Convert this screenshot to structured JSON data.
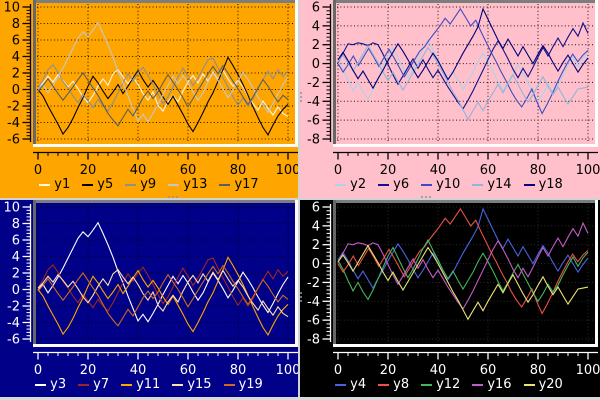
{
  "window": {
    "splitter_color": "#d2d2d2",
    "edge_color": "#d9d9d9"
  },
  "chart_data": {
    "type": "line",
    "charts": [
      {
        "id": "tl",
        "position": "top-left",
        "type": "line",
        "bg": "#ffa500",
        "fg": "#000000",
        "grid_color": "#000000",
        "grid_opacity": 0.9,
        "grid": true,
        "legend_position": "bottom",
        "xlim": [
          0,
          100
        ],
        "x_ticks": [
          0,
          20,
          40,
          60,
          80,
          100
        ],
        "x_minor_divisions": 5,
        "ylim": [
          -6,
          10
        ],
        "y_ticks": [
          10,
          8,
          6,
          4,
          2,
          0,
          -2,
          -4,
          -6
        ],
        "y_minor_divisions": 5,
        "series": [
          {
            "name": "y1",
            "color": "#fdf5e0",
            "values_ref": "A"
          },
          {
            "name": "y5",
            "color": "#000000",
            "values_ref": "B"
          },
          {
            "name": "y9",
            "color": "#8f8f8f",
            "values_ref": "C"
          },
          {
            "name": "y13",
            "color": "#c6c6c6",
            "values_ref": "D"
          },
          {
            "name": "y17",
            "color": "#5d5d5d",
            "values_ref": "E"
          }
        ]
      },
      {
        "id": "tr",
        "position": "top-right",
        "type": "line",
        "bg": "#ffc0cb",
        "fg": "#000000",
        "grid_color": "#000000",
        "grid_opacity": 0.9,
        "grid": true,
        "legend_position": "bottom",
        "xlim": [
          0,
          100
        ],
        "x_ticks": [
          0,
          20,
          40,
          60,
          80,
          100
        ],
        "x_minor_divisions": 5,
        "ylim": [
          -8,
          6
        ],
        "y_ticks": [
          6,
          4,
          2,
          0,
          -2,
          -4,
          -6,
          -8
        ],
        "y_minor_divisions": 5,
        "series": [
          {
            "name": "y2",
            "color": "#aed2e8",
            "values_ref": "F"
          },
          {
            "name": "y6",
            "color": "#10108c",
            "values_ref": "G"
          },
          {
            "name": "y10",
            "color": "#3e4cc0",
            "values_ref": "H"
          },
          {
            "name": "y14",
            "color": "#93b4da",
            "values_ref": "I"
          },
          {
            "name": "y18",
            "color": "#00007a",
            "values_ref": "J"
          }
        ]
      },
      {
        "id": "bl",
        "position": "bottom-left",
        "type": "line",
        "bg": "#000089",
        "fg": "#ffffff",
        "grid_color": "#000000",
        "grid_opacity": 0.8,
        "grid": true,
        "legend_position": "bottom",
        "xlim": [
          0,
          100
        ],
        "x_ticks": [
          0,
          20,
          40,
          60,
          80,
          100
        ],
        "x_minor_divisions": 5,
        "ylim": [
          -6,
          10
        ],
        "y_ticks": [
          10,
          8,
          6,
          4,
          2,
          0,
          -2,
          -4,
          -6
        ],
        "y_minor_divisions": 5,
        "series": [
          {
            "name": "y3",
            "color": "#ffffff",
            "values_ref": "D"
          },
          {
            "name": "y7",
            "color": "#a02424",
            "values_ref": "C"
          },
          {
            "name": "y11",
            "color": "#ffa500",
            "values_ref": "B"
          },
          {
            "name": "y15",
            "color": "#ffdead",
            "values_ref": "A"
          },
          {
            "name": "y19",
            "color": "#cd6a1e",
            "values_ref": "E"
          }
        ]
      },
      {
        "id": "br",
        "position": "bottom-right",
        "type": "line",
        "bg": "#000000",
        "fg": "#ffffff",
        "grid_color": "#2c2c2c",
        "grid_opacity": 1,
        "grid": true,
        "legend_position": "bottom",
        "xlim": [
          0,
          100
        ],
        "x_ticks": [
          0,
          20,
          40,
          60,
          80,
          100
        ],
        "x_minor_divisions": 5,
        "ylim": [
          -8,
          6
        ],
        "y_ticks": [
          6,
          4,
          2,
          0,
          -2,
          -4,
          -6,
          -8
        ],
        "y_minor_divisions": 5,
        "series": [
          {
            "name": "y4",
            "color": "#4664e0",
            "values_ref": "J"
          },
          {
            "name": "y8",
            "color": "#ec5148",
            "values_ref": "H"
          },
          {
            "name": "y12",
            "color": "#46b45c",
            "values_ref": "F"
          },
          {
            "name": "y16",
            "color": "#c35cc3",
            "values_ref": "G"
          },
          {
            "name": "y20",
            "color": "#e9e275",
            "values_ref": "I"
          }
        ]
      }
    ],
    "walks": {
      "A": [
        0.2,
        0.8,
        1.6,
        0.9,
        1.8,
        1.1,
        0.3,
        1.0,
        0.1,
        -0.9,
        -1.6,
        -0.7,
        0.4,
        1.3,
        0.5,
        1.9,
        2.4,
        1.5,
        0.7,
        1.5,
        0.6,
        -0.5,
        -1.3,
        -0.3,
        -1.9,
        -2.6,
        -1.5,
        -0.7,
        -1.5,
        -0.2,
        0.9,
        1.7,
        0.8,
        1.9,
        1.0,
        2.1,
        1.2,
        2.3,
        1.3,
        0.4,
        1.1,
        0.3,
        -0.8,
        -1.7,
        -2.5,
        -1.4,
        -2.3,
        -3.1,
        -2.1,
        -2.9,
        -3.3
      ],
      "B": [
        0.0,
        -0.8,
        -2.0,
        -3.1,
        -4.2,
        -5.4,
        -4.6,
        -3.5,
        -2.2,
        -1.0,
        0.4,
        1.6,
        0.8,
        -0.2,
        -1.1,
        -0.3,
        0.6,
        -0.5,
        0.4,
        1.4,
        2.3,
        1.2,
        0.3,
        1.1,
        0.2,
        -0.9,
        -1.8,
        -0.8,
        -1.9,
        -3.0,
        -4.2,
        -5.1,
        -4.0,
        -2.8,
        -1.5,
        -0.4,
        1.0,
        2.4,
        3.9,
        2.9,
        1.8,
        0.6,
        -0.7,
        -2.1,
        -3.4,
        -4.6,
        -5.5,
        -4.3,
        -3.2,
        -2.4,
        -1.8
      ],
      "C": [
        0.1,
        1.2,
        2.4,
        3.0,
        2.1,
        1.0,
        0.2,
        -0.8,
        -1.6,
        -0.6,
        -1.4,
        -2.2,
        -1.2,
        -2.0,
        -2.6,
        -1.6,
        -0.4,
        0.8,
        1.9,
        1.0,
        2.0,
        2.7,
        1.7,
        0.6,
        -0.6,
        -1.7,
        -0.9,
        0.3,
        1.5,
        2.6,
        1.6,
        0.5,
        1.4,
        2.5,
        3.6,
        3.8,
        2.6,
        1.4,
        0.3,
        -0.9,
        -1.9,
        -1.0,
        -2.0,
        -1.1,
        0.1,
        1.2,
        2.2,
        1.3,
        2.4,
        1.6,
        2.2
      ],
      "D": [
        0.0,
        0.6,
        -0.4,
        0.5,
        1.5,
        2.6,
        3.8,
        5.0,
        6.2,
        7.0,
        6.4,
        7.2,
        8.1,
        6.8,
        5.4,
        3.9,
        2.2,
        0.8,
        -0.8,
        -2.3,
        -3.8,
        -3.0,
        -3.9,
        -2.9,
        -1.8,
        -0.6,
        0.5,
        1.6,
        0.7,
        1.7,
        0.8,
        -0.3,
        -1.3,
        -0.4,
        0.9,
        2.0,
        1.1,
        0.1,
        -1.0,
        -0.1,
        1.0,
        2.1,
        1.2,
        0.2,
        -0.9,
        -1.9,
        -2.8,
        -1.7,
        -0.5,
        0.6,
        1.5
      ],
      "E": [
        -0.2,
        0.5,
        1.3,
        0.4,
        -0.5,
        -1.3,
        -0.5,
        0.3,
        1.2,
        2.0,
        1.1,
        0.2,
        -0.7,
        -1.8,
        -2.9,
        -3.7,
        -4.4,
        -3.4,
        -2.4,
        -3.2,
        -2.1,
        -1.0,
        -0.2,
        -1.1,
        -0.3,
        0.8,
        1.8,
        0.9,
        0.0,
        -1.0,
        -2.1,
        -1.1,
        -0.1,
        0.9,
        1.9,
        2.8,
        1.9,
        2.9,
        2.0,
        1.0,
        0.1,
        -0.9,
        -1.8,
        -0.9,
        0.2,
        1.2,
        0.4,
        -0.6,
        -1.5,
        -0.7,
        -1.2
      ],
      "F": [
        0.3,
        -0.6,
        -1.8,
        -2.9,
        -2.0,
        -3.0,
        -3.8,
        -2.8,
        -1.6,
        -0.4,
        0.8,
        1.7,
        0.6,
        -0.5,
        -1.5,
        -0.6,
        0.5,
        1.6,
        2.5,
        1.4,
        0.4,
        -0.7,
        -1.6,
        -0.8,
        -1.8,
        -2.7,
        -1.8,
        -0.9,
        0.2,
        1.1,
        0.2,
        -0.8,
        -1.9,
        -2.9,
        -2.0,
        -1.0,
        -0.1,
        -1.1,
        -2.1,
        -3.1,
        -4.0,
        -3.2,
        -2.2,
        -3.0,
        -2.3,
        -1.2,
        -0.2,
        0.7,
        -0.3,
        0.6,
        1.2
      ],
      "G": [
        0.1,
        1.1,
        2.1,
        2.0,
        2.2,
        2.1,
        1.9,
        2.2,
        2.0,
        1.0,
        -0.1,
        -1.2,
        -2.2,
        -1.3,
        -0.4,
        0.5,
        -0.5,
        0.4,
        -0.6,
        -1.5,
        -0.7,
        -1.6,
        -2.5,
        -3.3,
        -4.1,
        -4.8,
        -3.9,
        -2.9,
        -1.8,
        -0.7,
        0.4,
        1.5,
        2.4,
        1.5,
        0.5,
        -0.6,
        -1.5,
        -0.5,
        -1.4,
        -0.4,
        0.7,
        1.7,
        0.8,
        1.8,
        2.7,
        1.8,
        2.8,
        3.7,
        2.9,
        4.3,
        3.2
      ],
      "H": [
        0.0,
        -0.9,
        -0.1,
        0.8,
        -0.2,
        0.7,
        1.6,
        0.7,
        -0.3,
        0.6,
        1.5,
        0.6,
        -0.4,
        -1.4,
        -0.5,
        0.4,
        1.3,
        1.8,
        2.6,
        3.3,
        4.0,
        4.8,
        4.2,
        5.0,
        5.8,
        4.9,
        4.0,
        4.6,
        3.4,
        2.3,
        1.2,
        0.2,
        -0.9,
        -1.9,
        -3.0,
        -3.9,
        -4.6,
        -3.7,
        -2.7,
        -4.1,
        -5.3,
        -4.3,
        -3.2,
        -2.0,
        -0.9,
        0.1,
        1.0,
        0.2,
        0.9,
        1.4
      ],
      "I": [
        0.2,
        0.9,
        0.1,
        -0.8,
        0.1,
        1.0,
        1.9,
        1.0,
        0.1,
        -0.9,
        -1.8,
        -0.9,
        -1.9,
        -2.8,
        -1.9,
        -1.0,
        -0.1,
        0.8,
        1.7,
        0.9,
        0.0,
        -1.0,
        -2.0,
        -3.0,
        -3.9,
        -4.9,
        -5.9,
        -5.0,
        -4.1,
        -5.0,
        -4.0,
        -3.1,
        -2.2,
        -3.1,
        -2.1,
        -1.2,
        -2.2,
        -3.2,
        -4.1,
        -3.3,
        -2.3,
        -1.4,
        -2.4,
        -3.3,
        -2.5,
        -3.4,
        -4.3,
        -3.5,
        -2.7,
        -2.6,
        -2.5
      ],
      "J": [
        0.4,
        1.2,
        0.3,
        -0.7,
        -1.6,
        -0.8,
        -1.7,
        -2.6,
        -1.6,
        -0.7,
        0.3,
        1.2,
        2.1,
        1.3,
        0.4,
        -0.6,
        -1.5,
        -0.7,
        0.2,
        1.1,
        0.3,
        -0.7,
        -1.7,
        -0.9,
        0.1,
        1.1,
        2.0,
        2.9,
        3.9,
        5.8,
        4.7,
        3.6,
        2.5,
        1.6,
        2.6,
        1.7,
        0.8,
        1.8,
        0.9,
        0.0,
        1.0,
        1.9,
        1.1,
        0.1,
        -0.8,
        0.1,
        0.9,
        0.0,
        -0.9,
        -0.1,
        0.6
      ]
    }
  }
}
